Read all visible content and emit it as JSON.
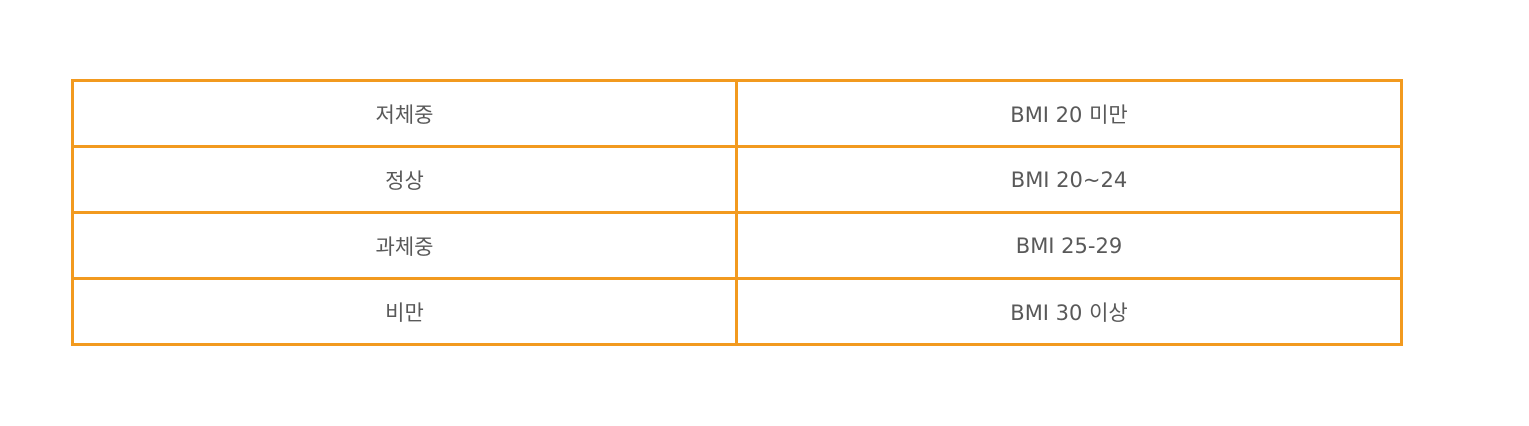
{
  "table": {
    "rows": [
      {
        "category": "저체중",
        "range": "BMI 20 미만"
      },
      {
        "category": "정상",
        "range": "BMI 20~24"
      },
      {
        "category": "과체중",
        "range": "BMI 25-29"
      },
      {
        "category": "비만",
        "range": "BMI 30 이상"
      }
    ]
  },
  "colors": {
    "border": "#f29a1f",
    "text": "#595959",
    "background": "#ffffff"
  }
}
